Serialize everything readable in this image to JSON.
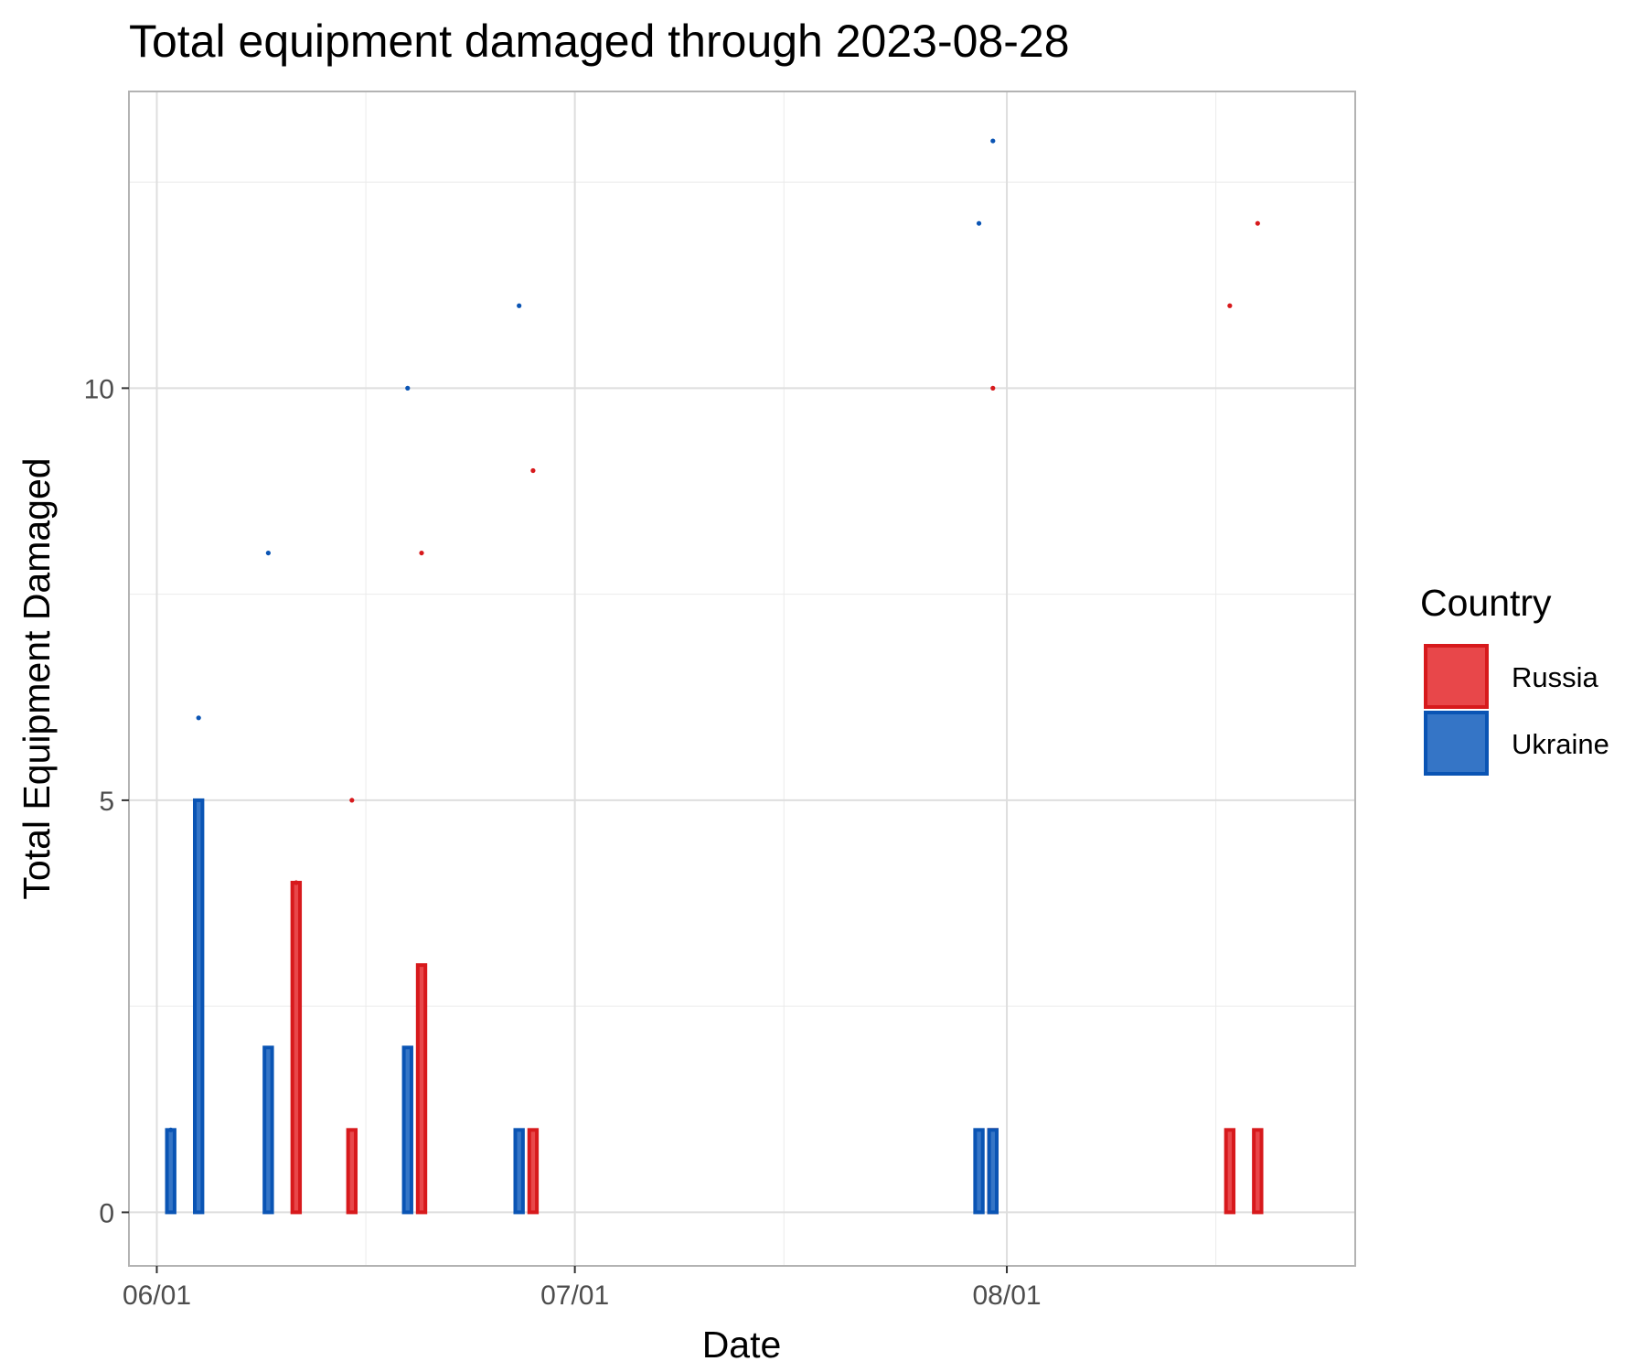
{
  "chart_data": {
    "type": "bar",
    "title": "Total equipment damaged through 2023-08-28",
    "xlabel": "Date",
    "ylabel": "Total Equipment Damaged",
    "x_type": "date",
    "xlim": [
      "2023-05-30",
      "2023-08-26"
    ],
    "ylim": [
      -0.65,
      13.6
    ],
    "x_ticks": [
      {
        "date": "2023-06-01",
        "label": "06/01"
      },
      {
        "date": "2023-07-01",
        "label": "07/01"
      },
      {
        "date": "2023-08-01",
        "label": "08/01"
      }
    ],
    "x_minor_gridlines": [
      "2023-06-16",
      "2023-07-16",
      "2023-08-16"
    ],
    "y_ticks": [
      0,
      5,
      10
    ],
    "y_minor_gridlines": [
      2.5,
      7.5,
      12.5
    ],
    "grid": true,
    "legend": {
      "title": "Country",
      "placement": "right"
    },
    "series": [
      {
        "name": "Russia",
        "color": "#d7191c",
        "fill": "#e8474a",
        "bars": [
          {
            "date": "2023-06-11",
            "value": 4
          },
          {
            "date": "2023-06-15",
            "value": 1
          },
          {
            "date": "2023-06-20",
            "value": 3
          },
          {
            "date": "2023-06-28",
            "value": 1
          },
          {
            "date": "2023-07-31",
            "value": 1
          },
          {
            "date": "2023-08-17",
            "value": 1
          },
          {
            "date": "2023-08-19",
            "value": 1
          }
        ],
        "cumulative_points": [
          {
            "date": "2023-06-11",
            "value": 4
          },
          {
            "date": "2023-06-15",
            "value": 5
          },
          {
            "date": "2023-06-20",
            "value": 8
          },
          {
            "date": "2023-06-28",
            "value": 9
          },
          {
            "date": "2023-07-31",
            "value": 10
          },
          {
            "date": "2023-08-17",
            "value": 11
          },
          {
            "date": "2023-08-19",
            "value": 12
          }
        ]
      },
      {
        "name": "Ukraine",
        "color": "#0a54b4",
        "fill": "#3575c6",
        "bars": [
          {
            "date": "2023-06-02",
            "value": 1
          },
          {
            "date": "2023-06-04",
            "value": 5
          },
          {
            "date": "2023-06-09",
            "value": 2
          },
          {
            "date": "2023-06-19",
            "value": 2
          },
          {
            "date": "2023-06-27",
            "value": 1
          },
          {
            "date": "2023-07-30",
            "value": 1
          },
          {
            "date": "2023-07-31",
            "value": 1
          }
        ],
        "cumulative_points": [
          {
            "date": "2023-06-02",
            "value": 1
          },
          {
            "date": "2023-06-04",
            "value": 6
          },
          {
            "date": "2023-06-09",
            "value": 8
          },
          {
            "date": "2023-06-19",
            "value": 10
          },
          {
            "date": "2023-06-27",
            "value": 11
          },
          {
            "date": "2023-07-30",
            "value": 12
          },
          {
            "date": "2023-07-31",
            "value": 13
          }
        ]
      }
    ]
  }
}
